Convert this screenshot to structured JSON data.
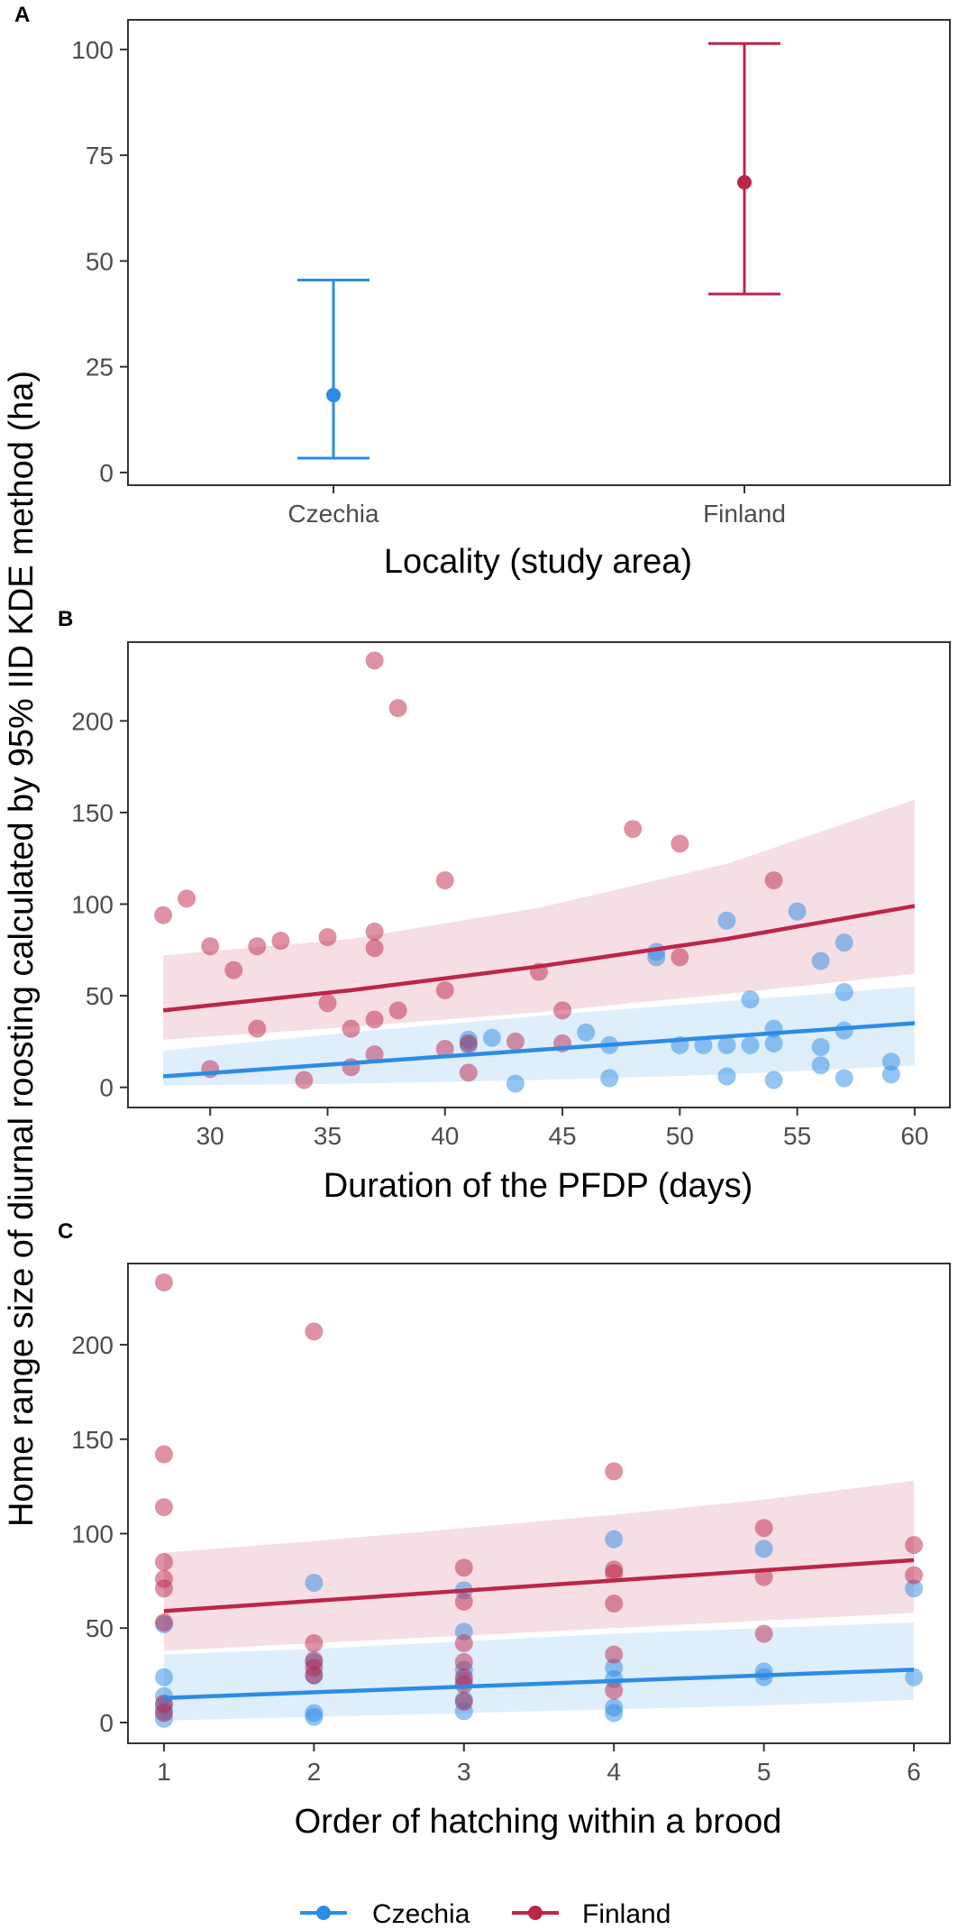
{
  "figure": {
    "ylabel": "Home range size of diurnal roosting calculated by 95% IID KDE method (ha)",
    "legend": {
      "items": [
        {
          "name": "Czechia",
          "color": "#2b8ce6"
        },
        {
          "name": "Finland",
          "color": "#bd2549"
        }
      ]
    }
  },
  "chart_data": [
    {
      "panel": "A",
      "type": "errorbar",
      "title": "",
      "xlabel": "Locality (study area)",
      "categories": [
        "Czechia",
        "Finland"
      ],
      "ylim": [
        -3,
        107
      ],
      "yticks": [
        0,
        25,
        50,
        75,
        100
      ],
      "series": [
        {
          "name": "Czechia",
          "color": "#2b8ce6",
          "estimate": 18.3,
          "lower": 3.4,
          "upper": 45.5
        },
        {
          "name": "Finland",
          "color": "#bd2549",
          "estimate": 68.6,
          "lower": 42.2,
          "upper": 101.4
        }
      ]
    },
    {
      "panel": "B",
      "type": "scatter",
      "title": "",
      "xlabel": "Duration of the PFDP (days)",
      "xlim": [
        26.5,
        61.5
      ],
      "ylim": [
        -11,
        243
      ],
      "xticks": [
        30,
        35,
        40,
        45,
        50,
        55,
        60
      ],
      "yticks": [
        0,
        50,
        100,
        150,
        200
      ],
      "series": [
        {
          "name": "Czechia",
          "color": "#2b8ce6",
          "points": [
            [
              41,
              23
            ],
            [
              41,
              26
            ],
            [
              42,
              27
            ],
            [
              43,
              2
            ],
            [
              46,
              30
            ],
            [
              47,
              23
            ],
            [
              47,
              5
            ],
            [
              49,
              74
            ],
            [
              49,
              71
            ],
            [
              50,
              23
            ],
            [
              51,
              23
            ],
            [
              52,
              91
            ],
            [
              52,
              23
            ],
            [
              52,
              6
            ],
            [
              53,
              48
            ],
            [
              53,
              23
            ],
            [
              54,
              24
            ],
            [
              54,
              32
            ],
            [
              54,
              4
            ],
            [
              55,
              96
            ],
            [
              56,
              69
            ],
            [
              56,
              22
            ],
            [
              56,
              12
            ],
            [
              57,
              79
            ],
            [
              57,
              52
            ],
            [
              57,
              31
            ],
            [
              57,
              5
            ],
            [
              59,
              14
            ],
            [
              59,
              7
            ]
          ],
          "fit": {
            "x": [
              28,
              60
            ],
            "y": [
              6,
              35
            ]
          },
          "band": {
            "x": [
              28,
              36,
              44,
              52,
              60
            ],
            "lower": [
              1,
              2,
              4,
              7,
              12
            ],
            "upper": [
              20,
              30,
              39,
              47,
              55
            ]
          }
        },
        {
          "name": "Finland",
          "color": "#bd2549",
          "points": [
            [
              28,
              94
            ],
            [
              29,
              103
            ],
            [
              30,
              77
            ],
            [
              30,
              10
            ],
            [
              31,
              64
            ],
            [
              32,
              77
            ],
            [
              32,
              32
            ],
            [
              33,
              80
            ],
            [
              34,
              4
            ],
            [
              35,
              82
            ],
            [
              35,
              46
            ],
            [
              36,
              32
            ],
            [
              36,
              11
            ],
            [
              37,
              233
            ],
            [
              37,
              85
            ],
            [
              37,
              76
            ],
            [
              37,
              37
            ],
            [
              37,
              18
            ],
            [
              38,
              207
            ],
            [
              38,
              42
            ],
            [
              40,
              113
            ],
            [
              40,
              53
            ],
            [
              40,
              21
            ],
            [
              41,
              24
            ],
            [
              41,
              8
            ],
            [
              43,
              25
            ],
            [
              44,
              63
            ],
            [
              45,
              42
            ],
            [
              45,
              24
            ],
            [
              48,
              141
            ],
            [
              50,
              133
            ],
            [
              50,
              71
            ],
            [
              54,
              113
            ]
          ],
          "fit": {
            "x": [
              28,
              36,
              44,
              52,
              60
            ],
            "y": [
              42,
              53,
              66,
              81,
              99
            ]
          },
          "band": {
            "x": [
              28,
              36,
              44,
              52,
              60
            ],
            "lower": [
              26,
              33,
              41,
              51,
              62
            ],
            "upper": [
              72,
              81,
              98,
              122,
              157
            ]
          }
        }
      ]
    },
    {
      "panel": "C",
      "type": "scatter",
      "title": "",
      "xlabel": "Order of hatching within a brood",
      "xlim": [
        0.76,
        6.24
      ],
      "ylim": [
        -11,
        243
      ],
      "xticks": [
        1,
        2,
        3,
        4,
        5,
        6
      ],
      "yticks": [
        0,
        50,
        100,
        150,
        200
      ],
      "series": [
        {
          "name": "Czechia",
          "color": "#2b8ce6",
          "points": [
            [
              1,
              52
            ],
            [
              1,
              24
            ],
            [
              1,
              14
            ],
            [
              1,
              9
            ],
            [
              1,
              6
            ],
            [
              1,
              2
            ],
            [
              2,
              74
            ],
            [
              2,
              32
            ],
            [
              2,
              25
            ],
            [
              2,
              5
            ],
            [
              2,
              3
            ],
            [
              3,
              70
            ],
            [
              3,
              48
            ],
            [
              3,
              28
            ],
            [
              3,
              22
            ],
            [
              3,
              12
            ],
            [
              3,
              6
            ],
            [
              4,
              97
            ],
            [
              4,
              29
            ],
            [
              4,
              23
            ],
            [
              4,
              8
            ],
            [
              4,
              5
            ],
            [
              5,
              92
            ],
            [
              5,
              27
            ],
            [
              5,
              24
            ],
            [
              6,
              71
            ],
            [
              6,
              24
            ]
          ],
          "fit": {
            "x": [
              1,
              6
            ],
            "y": [
              13,
              28
            ]
          },
          "band": {
            "x": [
              1,
              2,
              3,
              4,
              5,
              6
            ],
            "lower": [
              1,
              3,
              5,
              7,
              9,
              12
            ],
            "upper": [
              36,
              39,
              43,
              47,
              50,
              53
            ]
          }
        },
        {
          "name": "Finland",
          "color": "#bd2549",
          "points": [
            [
              1,
              233
            ],
            [
              1,
              142
            ],
            [
              1,
              114
            ],
            [
              1,
              85
            ],
            [
              1,
              76
            ],
            [
              1,
              71
            ],
            [
              1,
              53
            ],
            [
              1,
              10
            ],
            [
              1,
              5
            ],
            [
              2,
              207
            ],
            [
              2,
              42
            ],
            [
              2,
              33
            ],
            [
              2,
              29
            ],
            [
              2,
              25
            ],
            [
              3,
              82
            ],
            [
              3,
              64
            ],
            [
              3,
              42
            ],
            [
              3,
              32
            ],
            [
              3,
              24
            ],
            [
              3,
              20
            ],
            [
              3,
              11
            ],
            [
              4,
              133
            ],
            [
              4,
              81
            ],
            [
              4,
              79
            ],
            [
              4,
              63
            ],
            [
              4,
              36
            ],
            [
              4,
              17
            ],
            [
              5,
              103
            ],
            [
              5,
              77
            ],
            [
              5,
              47
            ],
            [
              6,
              94
            ],
            [
              6,
              78
            ]
          ],
          "fit": {
            "x": [
              1,
              6
            ],
            "y": [
              59,
              86
            ]
          },
          "band": {
            "x": [
              1,
              2,
              3,
              4,
              5,
              6
            ],
            "lower": [
              38,
              42,
              46,
              50,
              54,
              58
            ],
            "upper": [
              90,
              96,
              103,
              110,
              118,
              128
            ]
          }
        }
      ]
    }
  ]
}
